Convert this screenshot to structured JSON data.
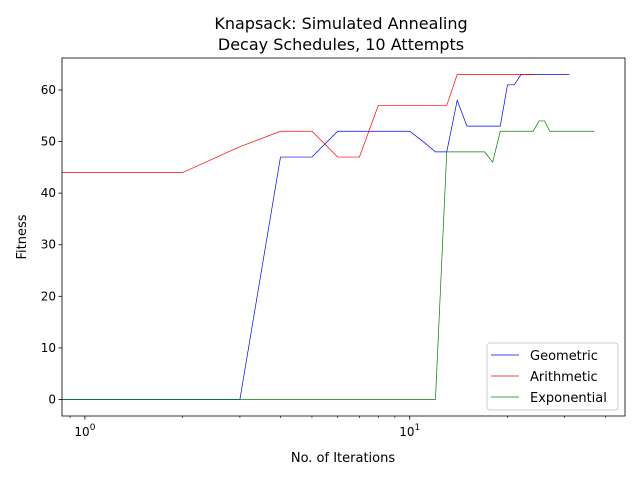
{
  "chart_data": {
    "type": "line",
    "title_line1": "Knapsack: Simulated Annealing",
    "title_line2": "Decay Schedules, 10 Attempts",
    "xlabel": "No. of Iterations",
    "ylabel": "Fitness",
    "xscale": "log",
    "xlim": [
      0.85,
      46
    ],
    "ylim": [
      -3.2,
      66.2
    ],
    "xticks": [
      {
        "value": 1,
        "base": "10",
        "exp": "0"
      },
      {
        "value": 10,
        "base": "10",
        "exp": "1"
      }
    ],
    "yticks": [
      0,
      10,
      20,
      30,
      40,
      50,
      60
    ],
    "grid": false,
    "legend_position": "lower right",
    "series": [
      {
        "name": "Geometric",
        "color": "#0000ff",
        "points": [
          [
            0.85,
            0
          ],
          [
            1,
            0
          ],
          [
            2,
            0
          ],
          [
            3,
            0
          ],
          [
            4,
            47
          ],
          [
            5,
            47
          ],
          [
            6,
            52
          ],
          [
            7,
            52
          ],
          [
            8,
            52
          ],
          [
            9,
            52
          ],
          [
            10,
            52
          ],
          [
            11,
            50
          ],
          [
            12,
            48
          ],
          [
            13,
            48
          ],
          [
            14,
            58
          ],
          [
            15,
            53
          ],
          [
            16,
            53
          ],
          [
            17,
            53
          ],
          [
            18,
            53
          ],
          [
            19,
            53
          ],
          [
            20,
            61
          ],
          [
            21,
            61
          ],
          [
            22,
            63
          ],
          [
            23,
            63
          ],
          [
            24,
            63
          ],
          [
            25,
            63
          ],
          [
            26,
            63
          ],
          [
            27,
            63
          ],
          [
            28,
            63
          ],
          [
            29,
            63
          ],
          [
            30,
            63
          ],
          [
            31,
            63
          ]
        ]
      },
      {
        "name": "Arithmetic",
        "color": "#ff0000",
        "points": [
          [
            0.85,
            44
          ],
          [
            1,
            44
          ],
          [
            2,
            44
          ],
          [
            3,
            49
          ],
          [
            4,
            52
          ],
          [
            5,
            52
          ],
          [
            6,
            47
          ],
          [
            7,
            47
          ],
          [
            8,
            57
          ],
          [
            9,
            57
          ],
          [
            10,
            57
          ],
          [
            11,
            57
          ],
          [
            12,
            57
          ],
          [
            13,
            57
          ],
          [
            14,
            63
          ],
          [
            15,
            63
          ],
          [
            16,
            63
          ],
          [
            17,
            63
          ],
          [
            18,
            63
          ],
          [
            19,
            63
          ],
          [
            20,
            63
          ],
          [
            21,
            63
          ],
          [
            22,
            63
          ],
          [
            23,
            63
          ],
          [
            24,
            63
          ]
        ]
      },
      {
        "name": "Exponential",
        "color": "#008000",
        "points": [
          [
            0.85,
            0
          ],
          [
            1,
            0
          ],
          [
            2,
            0
          ],
          [
            3,
            0
          ],
          [
            4,
            0
          ],
          [
            5,
            0
          ],
          [
            6,
            0
          ],
          [
            7,
            0
          ],
          [
            8,
            0
          ],
          [
            9,
            0
          ],
          [
            10,
            0
          ],
          [
            11,
            0
          ],
          [
            12,
            0
          ],
          [
            13,
            48
          ],
          [
            14,
            48
          ],
          [
            15,
            48
          ],
          [
            16,
            48
          ],
          [
            17,
            48
          ],
          [
            18,
            46
          ],
          [
            19,
            52
          ],
          [
            20,
            52
          ],
          [
            21,
            52
          ],
          [
            22,
            52
          ],
          [
            23,
            52
          ],
          [
            24,
            52
          ],
          [
            25,
            54
          ],
          [
            26,
            54
          ],
          [
            27,
            52
          ],
          [
            28,
            52
          ],
          [
            29,
            52
          ],
          [
            30,
            52
          ],
          [
            31,
            52
          ],
          [
            32,
            52
          ],
          [
            33,
            52
          ],
          [
            34,
            52
          ],
          [
            35,
            52
          ],
          [
            36,
            52
          ],
          [
            37,
            52
          ]
        ]
      }
    ]
  }
}
